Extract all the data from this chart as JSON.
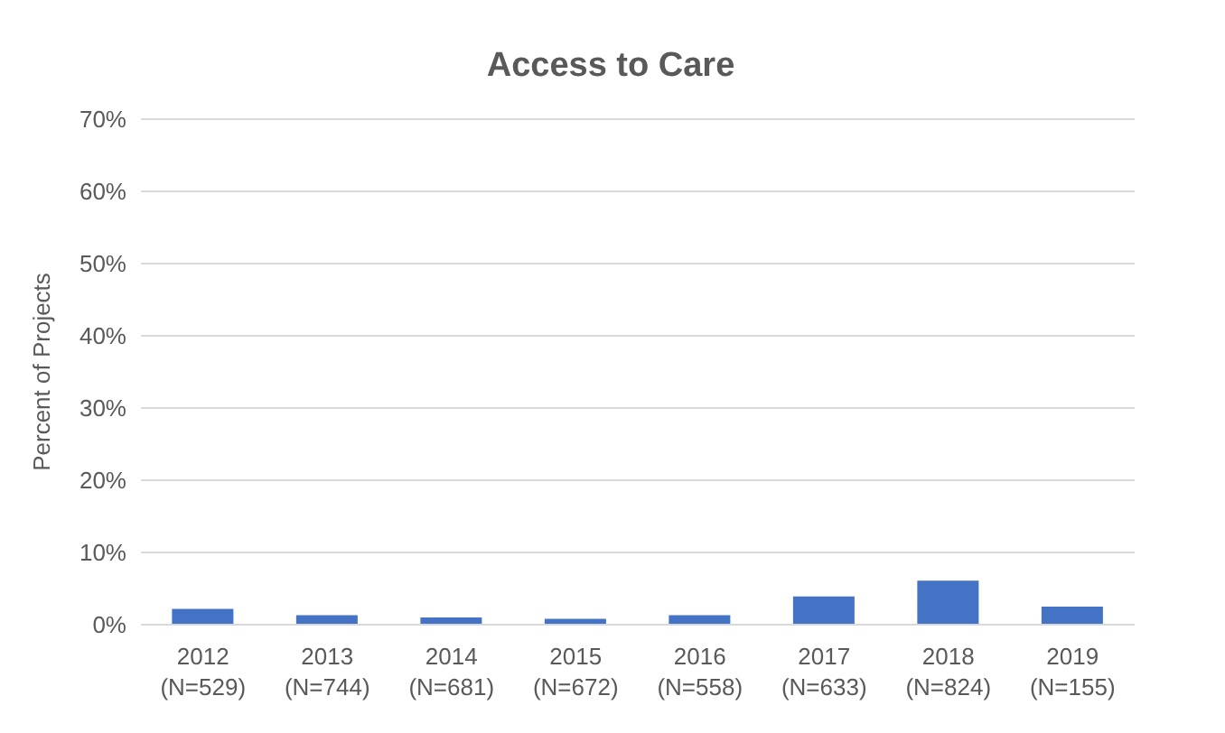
{
  "chart_data": {
    "type": "bar",
    "title": "Access to Care",
    "ylabel": "Percent of Projects",
    "categories": [
      "2012\n(N=529)",
      "2013\n(N=744)",
      "2014\n(N=681)",
      "2015\n(N=672)",
      "2016\n(N=558)",
      "2017\n(N=633)",
      "2018\n(N=824)",
      "2019\n(N=155)"
    ],
    "values": [
      2.2,
      1.3,
      1.0,
      0.8,
      1.3,
      3.9,
      6.1,
      2.5
    ],
    "color": "#4472c4",
    "ylim": [
      0,
      70
    ],
    "yticks": [
      {
        "value": 0,
        "label": "0%"
      },
      {
        "value": 10,
        "label": "10%"
      },
      {
        "value": 20,
        "label": "20%"
      },
      {
        "value": 30,
        "label": "30%"
      },
      {
        "value": 40,
        "label": "40%"
      },
      {
        "value": 50,
        "label": "50%"
      },
      {
        "value": 60,
        "label": "60%"
      },
      {
        "value": 70,
        "label": "70%"
      }
    ],
    "grid": "y"
  }
}
